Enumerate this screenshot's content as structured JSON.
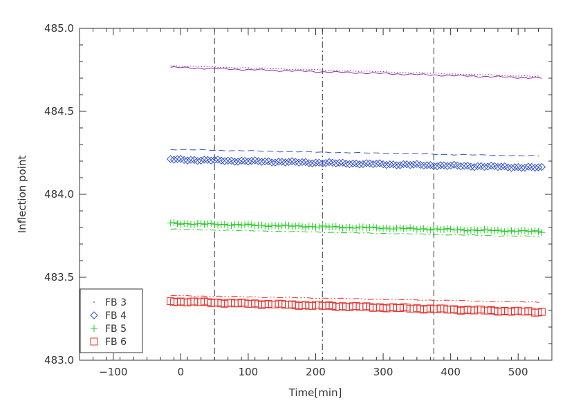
{
  "chart_data": {
    "type": "line",
    "title": "",
    "xlabel": "Time[min]",
    "ylabel": "Inflection point",
    "xlim": [
      -150,
      550
    ],
    "ylim": [
      483.0,
      485.0
    ],
    "x_ticks": [
      -100,
      0,
      100,
      200,
      300,
      400,
      500
    ],
    "x_tick_labels": [
      "−100",
      "0",
      "100",
      "200",
      "300",
      "400",
      "500"
    ],
    "y_ticks": [
      483.0,
      483.5,
      484.0,
      484.5,
      485.0
    ],
    "y_tick_labels": [
      "483.0",
      "483.5",
      "484.0",
      "484.5",
      "485.0"
    ],
    "grid": false,
    "legend_position": "bottom-left",
    "vertical_lines": [
      {
        "x": 50,
        "style": "dashed"
      },
      {
        "x": 210,
        "style": "dash-dot"
      },
      {
        "x": 375,
        "style": "dashed"
      }
    ],
    "series": [
      {
        "name": "FB 3",
        "color": "#8b2a9e",
        "marker": "dot",
        "line": "dotted",
        "start": 484.775,
        "end": 484.71,
        "y0": 484.765,
        "y1": 484.7
      },
      {
        "name": "FB 4",
        "color": "#3350cc",
        "marker": "diamond",
        "line": "dashed",
        "start": 484.27,
        "end": 484.23,
        "y0": 484.21,
        "y1": 484.16
      },
      {
        "name": "FB 5",
        "color": "#22cc22",
        "marker": "plus",
        "line": "dash-dot",
        "start": 483.79,
        "end": 483.745,
        "y0": 483.825,
        "y1": 483.775
      },
      {
        "name": "FB 6",
        "color": "#e8302a",
        "marker": "square",
        "line": "dash-dot-dot",
        "start": 483.39,
        "end": 483.35,
        "y0": 483.355,
        "y1": 483.29
      }
    ],
    "series_x_range": [
      -15,
      535
    ]
  }
}
